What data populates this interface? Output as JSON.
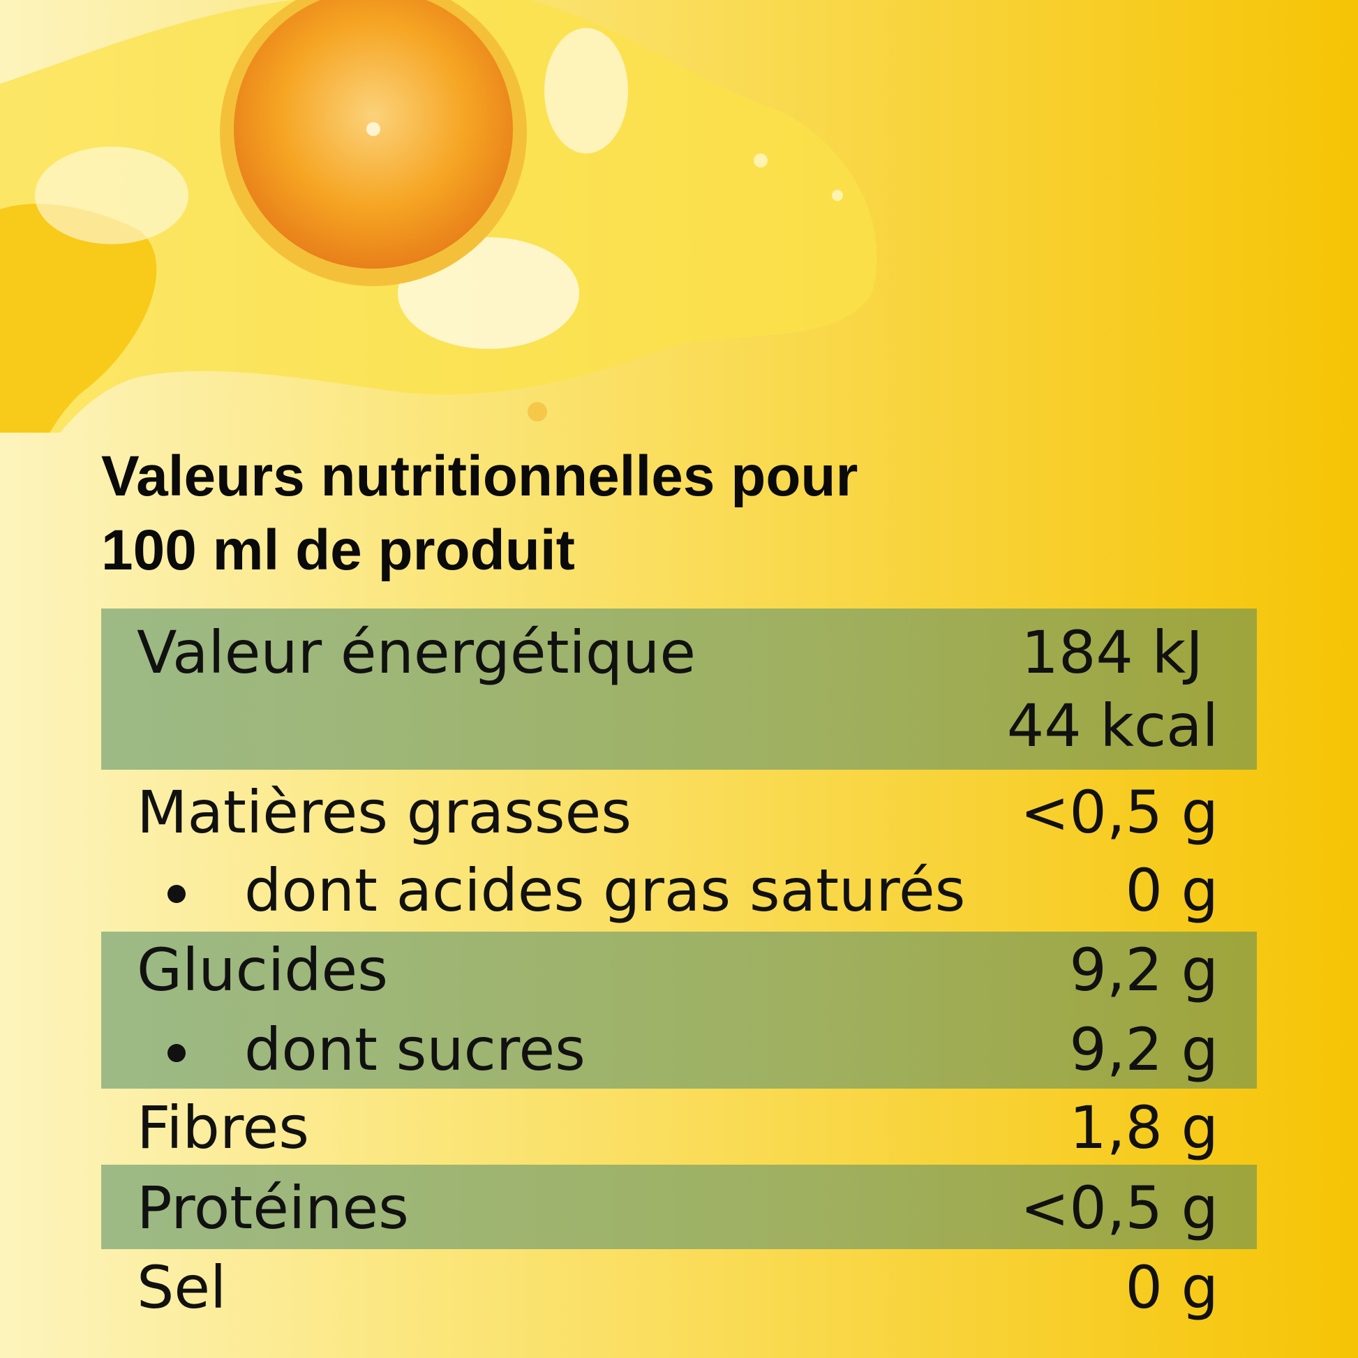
{
  "image": {
    "description_icon": "orange-juice-splash"
  },
  "title": {
    "line1": "Valeurs nutritionnelles pour",
    "line2": "100 ml de produit"
  },
  "colors": {
    "background_left": "#fdf4bd",
    "background_right": "#f6c405",
    "band": "#9aae62"
  },
  "rows": [
    {
      "label": "Valeur énergétique",
      "value": "184 kJ",
      "value2": "44 kcal"
    },
    {
      "label": "Matières grasses",
      "value": "<0,5 g"
    },
    {
      "label": "dont acides gras saturés",
      "value": "0 g"
    },
    {
      "label": "Glucides",
      "value": "9,2 g"
    },
    {
      "label": "dont sucres",
      "value": "9,2 g"
    },
    {
      "label": "Fibres",
      "value": "1,8 g"
    },
    {
      "label": "Protéines",
      "value": "<0,5 g"
    },
    {
      "label": "Sel",
      "value": "0 g"
    }
  ]
}
